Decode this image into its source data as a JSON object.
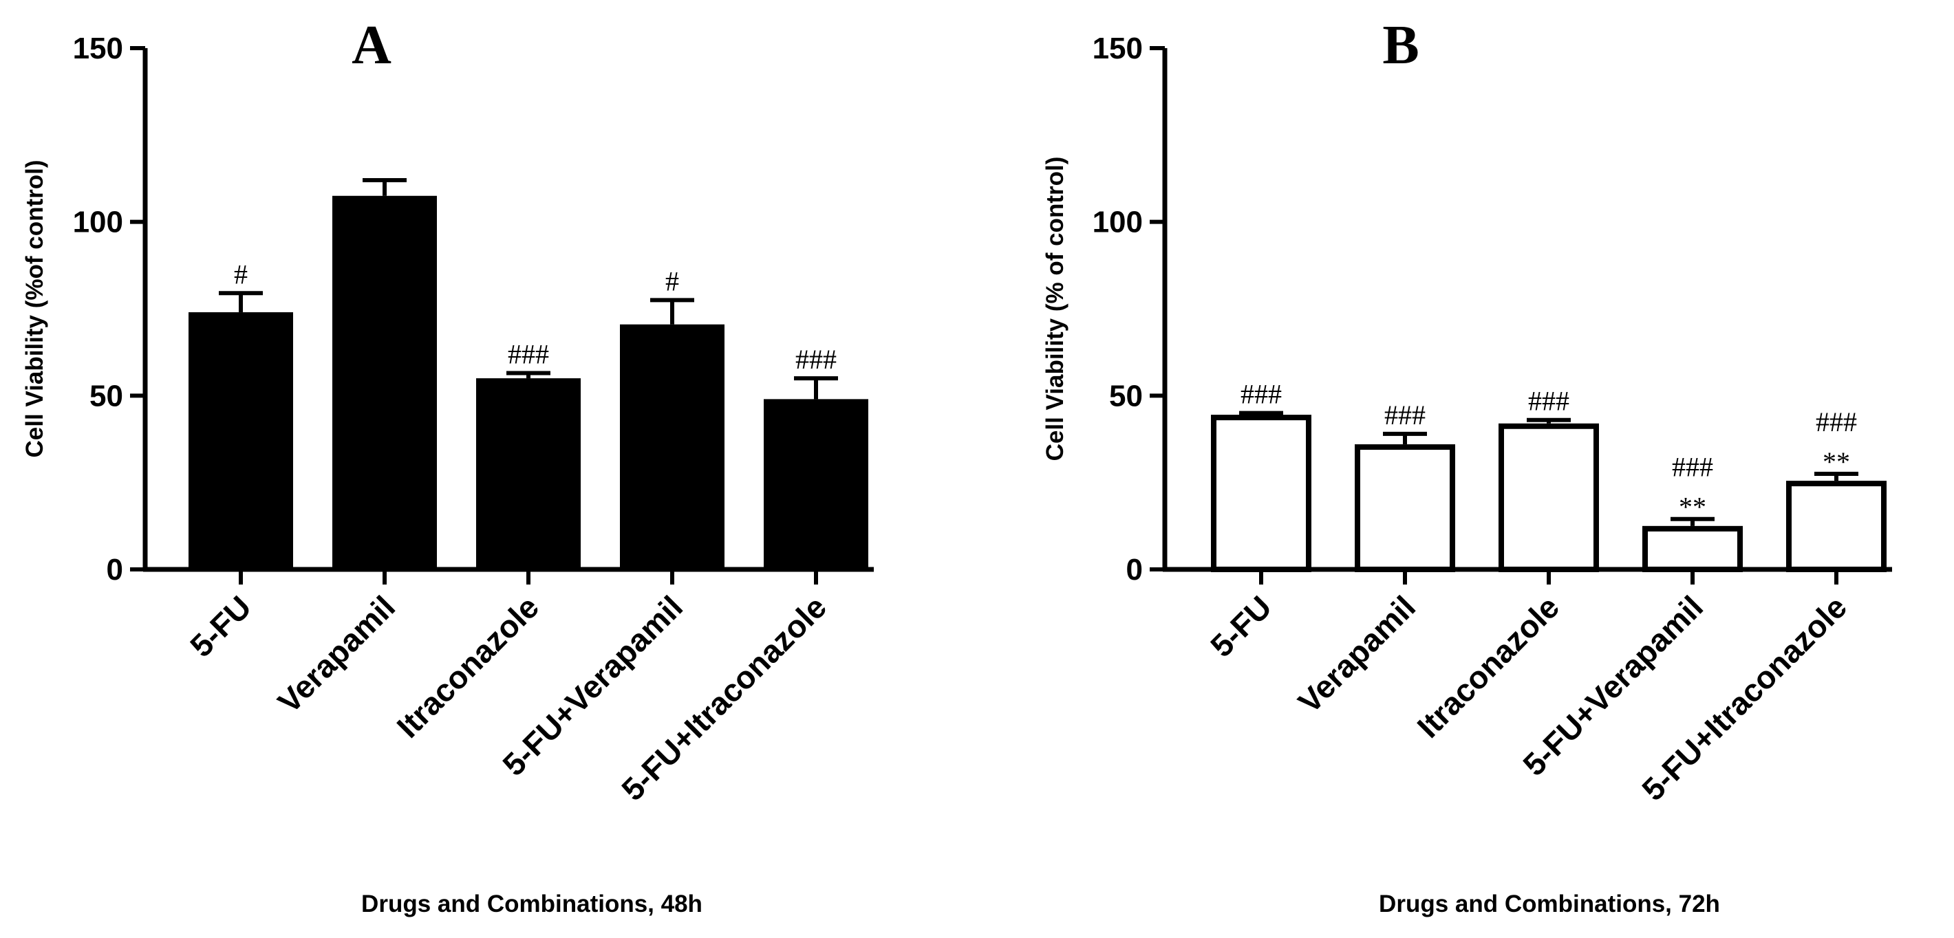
{
  "chart_data": [
    {
      "type": "bar",
      "panel": "A",
      "fill": "#000000",
      "categories": [
        "5-FU",
        "Verapamil",
        "Itraconazole",
        "5-FU+Verapamil",
        "5-FU+Itraconazole"
      ],
      "values": [
        74,
        107.5,
        55,
        70.5,
        49
      ],
      "errors": [
        5.5,
        4.5,
        1.5,
        7,
        6
      ],
      "annotations": [
        [
          "#"
        ],
        [],
        [
          "###"
        ],
        [
          "#"
        ],
        [
          "###"
        ]
      ],
      "xlabel": "Drugs and Combinations, 48h",
      "ylabel": "Cell Viability (%of control)",
      "ylim": [
        0,
        150
      ],
      "yticks": [
        "0",
        "50",
        "100",
        "150"
      ]
    },
    {
      "type": "bar",
      "panel": "B",
      "fill": "#ffffff",
      "categories": [
        "5-FU",
        "Verapamil",
        "Itraconazole",
        "5-FU+Verapamil",
        "5-FU+Itraconazole"
      ],
      "values": [
        44.5,
        36,
        42,
        12.5,
        25.5
      ],
      "errors": [
        0.5,
        3,
        1,
        2,
        2
      ],
      "annotations": [
        [
          "###"
        ],
        [
          "###"
        ],
        [
          "###"
        ],
        [
          "###",
          "**"
        ],
        [
          "###",
          "**"
        ]
      ],
      "xlabel": "Drugs and Combinations, 72h",
      "ylabel": "Cell Viability (% of control)",
      "ylim": [
        0,
        150
      ],
      "yticks": [
        "0",
        "50",
        "100",
        "150"
      ]
    }
  ]
}
